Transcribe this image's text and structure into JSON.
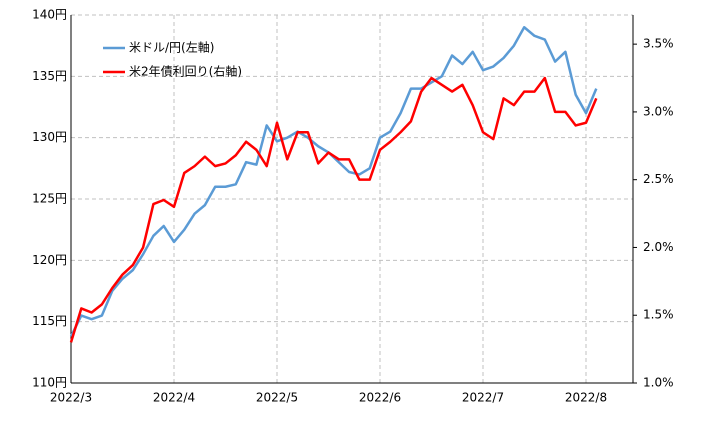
{
  "chart_data": {
    "type": "line",
    "categories": [
      "2022/3",
      null,
      null,
      null,
      null,
      null,
      null,
      null,
      null,
      null,
      "2022/4",
      null,
      null,
      null,
      null,
      null,
      null,
      null,
      null,
      null,
      "2022/5",
      null,
      null,
      null,
      null,
      null,
      null,
      null,
      null,
      null,
      "2022/6",
      null,
      null,
      null,
      null,
      null,
      null,
      null,
      null,
      null,
      "2022/7",
      null,
      null,
      null,
      null,
      null,
      null,
      null,
      null,
      null,
      "2022/8",
      null,
      null
    ],
    "series": [
      {
        "name": "米ドル/円(左軸)",
        "color": "#5b9bd5",
        "values": [
          113.8,
          115.5,
          115.2,
          115.5,
          117.5,
          118.5,
          119.2,
          120.5,
          122.0,
          122.8,
          121.5,
          122.5,
          123.8,
          124.5,
          126.0,
          126.0,
          126.2,
          128.0,
          127.8,
          131.0,
          129.7,
          130.0,
          130.5,
          130.0,
          129.3,
          128.8,
          128.0,
          127.2,
          127.0,
          127.5,
          130.0,
          130.5,
          132.0,
          134.0,
          134.0,
          134.5,
          135.0,
          136.7,
          136.0,
          137.0,
          135.5,
          135.8,
          136.5,
          137.5,
          139.0,
          138.3,
          138.0,
          136.2,
          137.0,
          133.5,
          132.0,
          134.0,
          null
        ]
      },
      {
        "name": "米2年債利回り(右軸)",
        "color": "#ff0000",
        "axis": "y2",
        "values": [
          1.3,
          1.55,
          1.52,
          1.58,
          1.7,
          1.8,
          1.87,
          2.0,
          2.32,
          2.35,
          2.3,
          2.55,
          2.6,
          2.67,
          2.6,
          2.62,
          2.68,
          2.78,
          2.72,
          2.6,
          2.92,
          2.65,
          2.85,
          2.85,
          2.62,
          2.7,
          2.65,
          2.65,
          2.5,
          2.5,
          2.72,
          2.78,
          2.85,
          2.93,
          3.15,
          3.25,
          3.2,
          3.15,
          3.2,
          3.05,
          2.85,
          2.8,
          3.1,
          3.05,
          3.15,
          3.15,
          3.25,
          3.0,
          3.0,
          2.9,
          2.92,
          3.1,
          null
        ]
      }
    ],
    "ylim": [
      110,
      140
    ],
    "yticks": [
      {
        "value": 110,
        "label": "110円"
      },
      {
        "value": 115,
        "label": "115円"
      },
      {
        "value": 120,
        "label": "120円"
      },
      {
        "value": 125,
        "label": "125円"
      },
      {
        "value": 130,
        "label": "130円"
      },
      {
        "value": 135,
        "label": "135円"
      },
      {
        "value": 140,
        "label": "140円"
      }
    ],
    "y2lim": [
      1.0,
      3.715
    ],
    "y2ticks": [
      {
        "value": 1.0,
        "label": "1.0%"
      },
      {
        "value": 1.5,
        "label": "1.5%"
      },
      {
        "value": 2.0,
        "label": "2.0%"
      },
      {
        "value": 2.5,
        "label": "2.5%"
      },
      {
        "value": 3.0,
        "label": "3.0%"
      },
      {
        "value": 3.5,
        "label": "3.5%"
      }
    ],
    "grid": true,
    "legend": "upper-left"
  }
}
